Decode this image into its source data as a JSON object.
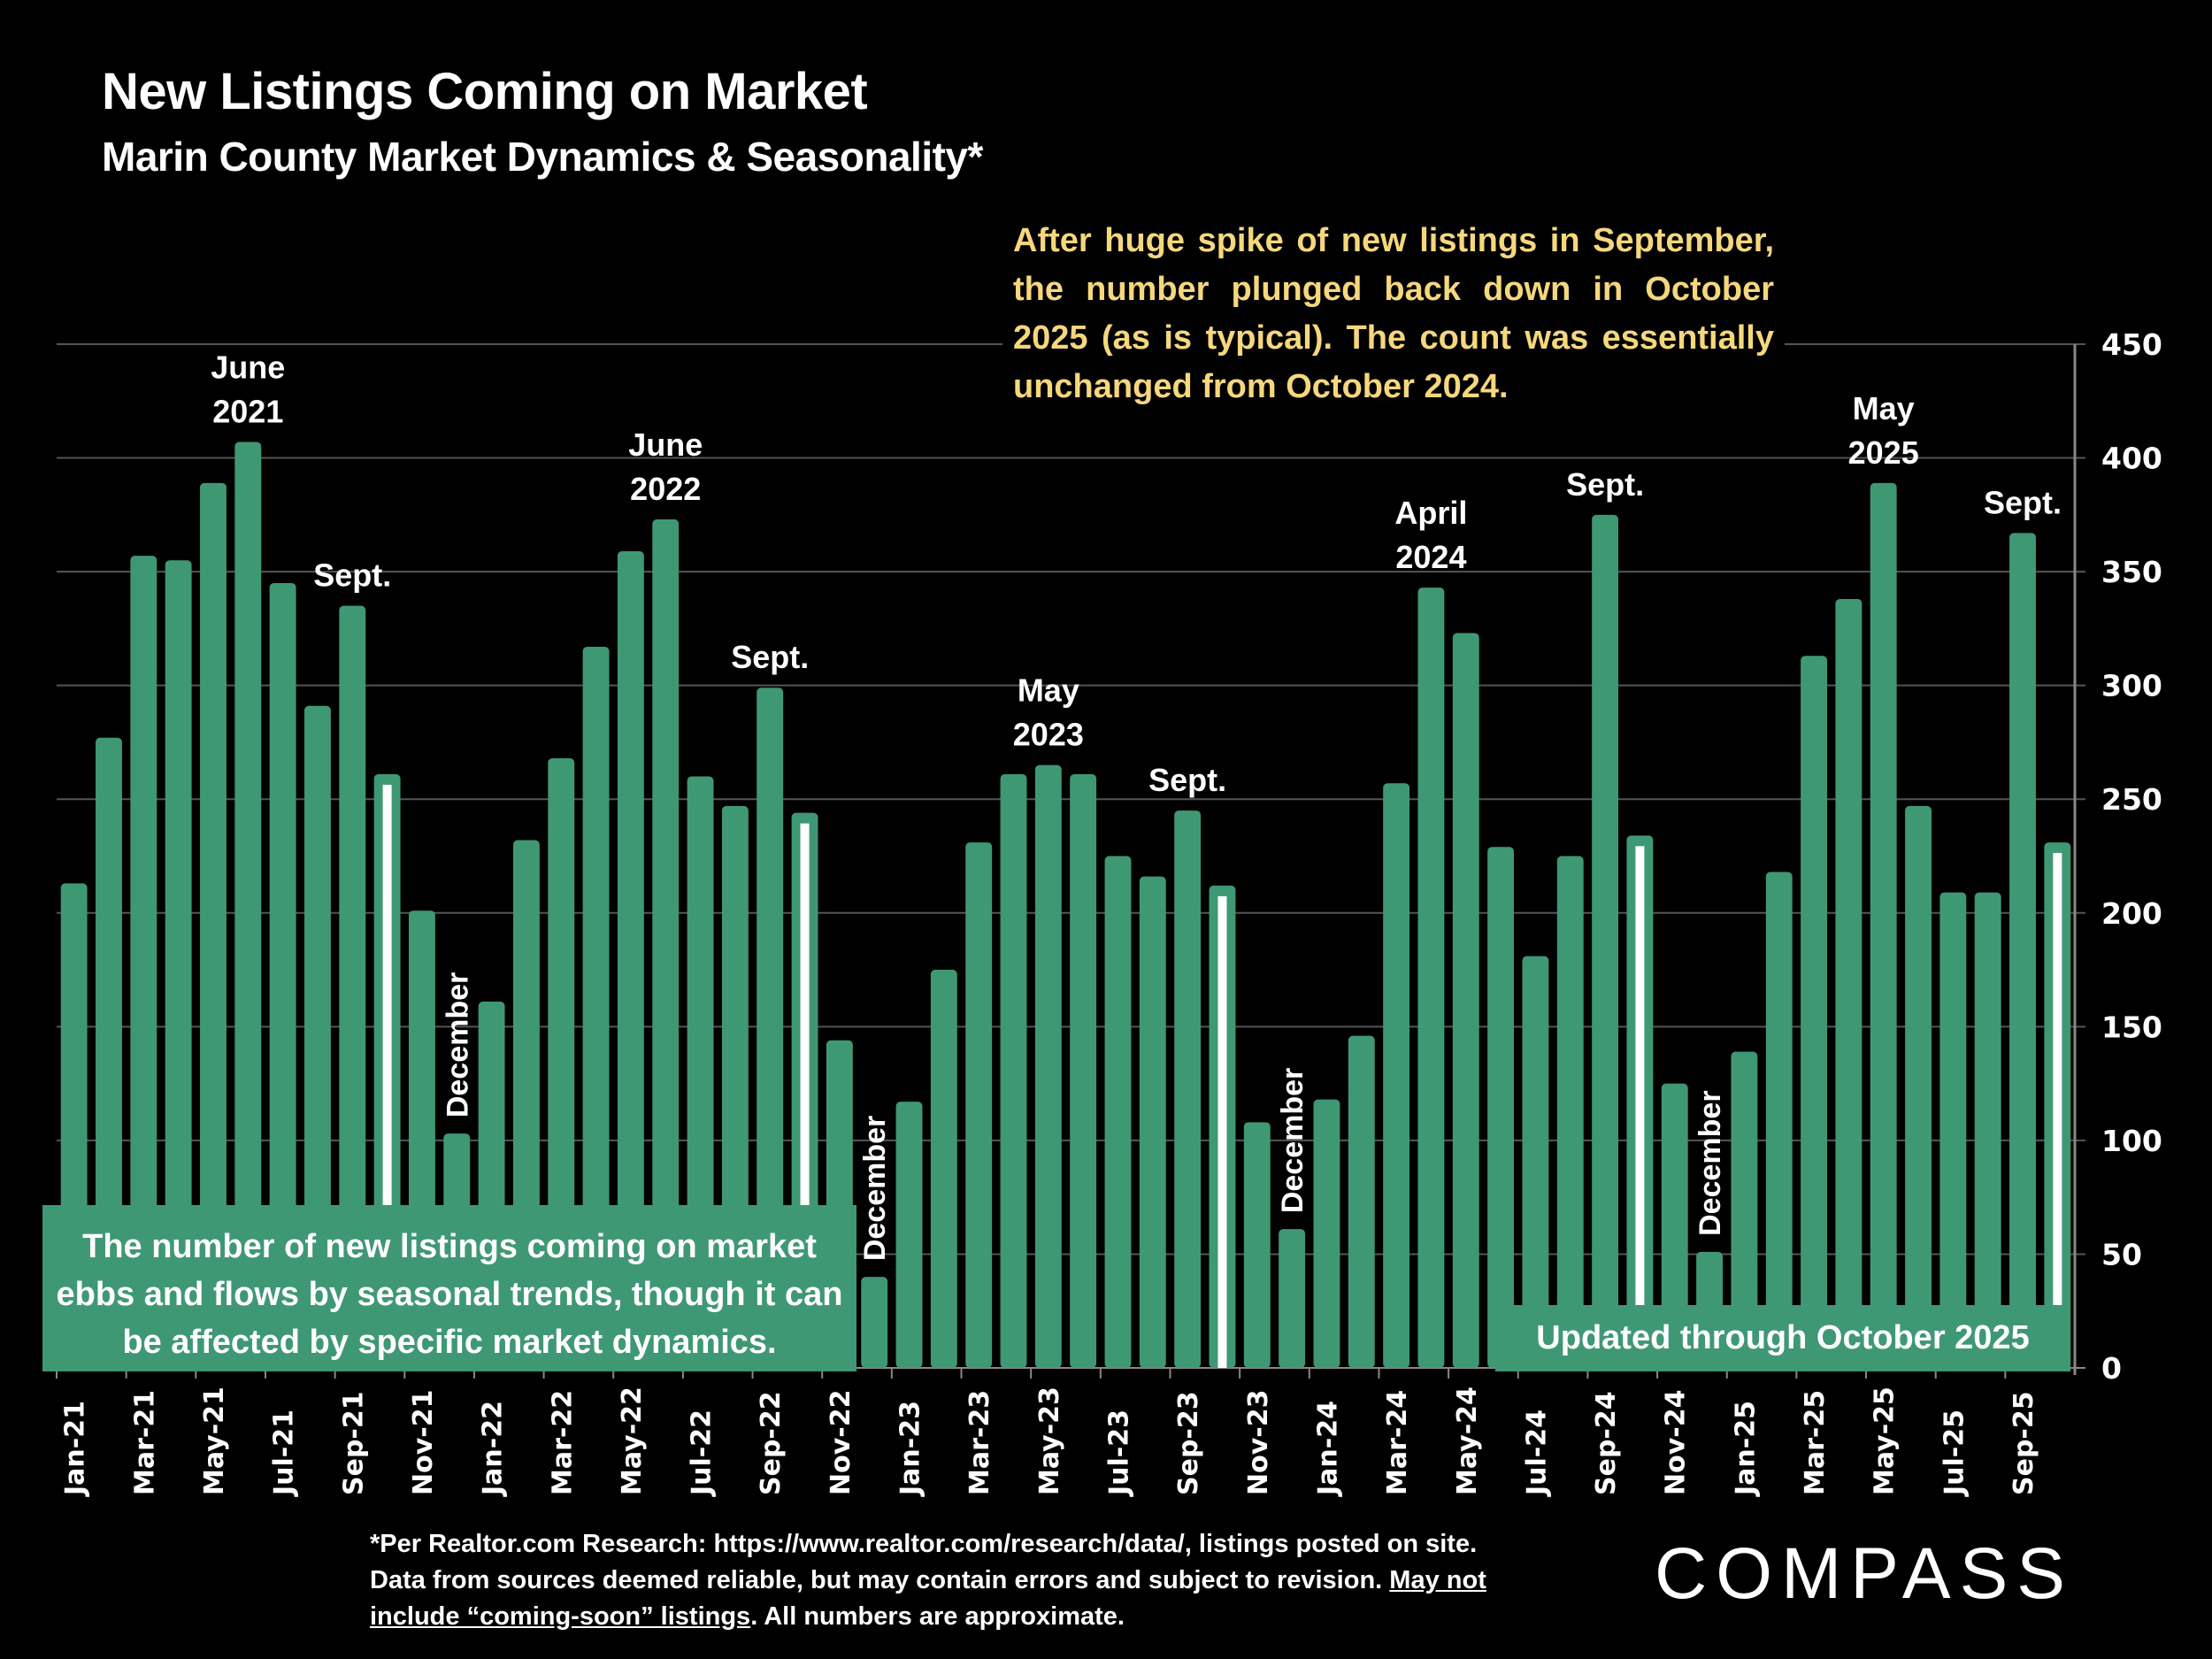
{
  "header": {
    "title": "New Listings Coming on Market",
    "subtitle": "Marin County Market Dynamics & Seasonality*"
  },
  "annotations": {
    "top_note": "After huge spike of new listings in September, the number plunged back down in October 2025 (as is typical). The count was essentially unchanged from October 2024.",
    "left_box": "The number of new listings coming on market ebbs and flows by seasonal trends, though it can be affected by specific market dynamics.",
    "right_box": "Updated through October 2025"
  },
  "footer": {
    "line1": "*Per Realtor.com Research:  https://www.realtor.com/research/data/, listings posted on site.",
    "line2_a": "Data from sources deemed reliable, but may contain errors and subject to revision. ",
    "line2_u": "May not",
    "line3_u": "include “coming-soon” listings",
    "line3_b": ". All numbers are approximate.",
    "logo": "COMPASS"
  },
  "colors": {
    "bar": "#3f9874",
    "highlight_stripe": "#ffffff",
    "note_text": "#f6d77c",
    "grid": "#555555",
    "background": "#000000"
  },
  "chart_data": {
    "type": "bar",
    "title": "New Listings Coming on Market",
    "subtitle": "Marin County Market Dynamics & Seasonality*",
    "xlabel": "",
    "ylabel": "",
    "ylim": [
      0,
      450
    ],
    "yticks": [
      0,
      50,
      100,
      150,
      200,
      250,
      300,
      350,
      400,
      450
    ],
    "y_axis_side": "right",
    "grid": true,
    "categories": [
      "Jan-21",
      "Feb-21",
      "Mar-21",
      "Apr-21",
      "May-21",
      "Jun-21",
      "Jul-21",
      "Aug-21",
      "Sep-21",
      "Oct-21",
      "Nov-21",
      "Dec-21",
      "Jan-22",
      "Feb-22",
      "Mar-22",
      "Apr-22",
      "May-22",
      "Jun-22",
      "Jul-22",
      "Aug-22",
      "Sep-22",
      "Oct-22",
      "Nov-22",
      "Dec-22",
      "Jan-23",
      "Feb-23",
      "Mar-23",
      "Apr-23",
      "May-23",
      "Jun-23",
      "Jul-23",
      "Aug-23",
      "Sep-23",
      "Oct-23",
      "Nov-23",
      "Dec-23",
      "Jan-24",
      "Feb-24",
      "Mar-24",
      "Apr-24",
      "May-24",
      "Jun-24",
      "Jul-24",
      "Aug-24",
      "Sep-24",
      "Oct-24",
      "Nov-24",
      "Dec-24",
      "Jan-25",
      "Feb-25",
      "Mar-25",
      "Apr-25",
      "May-25",
      "Jun-25",
      "Jul-25",
      "Aug-25",
      "Sep-25",
      "Oct-25"
    ],
    "values": [
      213,
      277,
      357,
      355,
      389,
      407,
      345,
      291,
      335,
      261,
      201,
      103,
      161,
      232,
      268,
      317,
      359,
      373,
      260,
      247,
      299,
      244,
      144,
      40,
      117,
      175,
      231,
      261,
      265,
      261,
      225,
      216,
      245,
      212,
      108,
      61,
      118,
      146,
      257,
      343,
      323,
      229,
      181,
      225,
      375,
      234,
      125,
      51,
      139,
      218,
      313,
      338,
      389,
      247,
      209,
      209,
      367,
      231
    ],
    "xtick_labels": [
      "Jan-21",
      "Mar-21",
      "May-21",
      "Jul-21",
      "Sep-21",
      "Nov-21",
      "Jan-22",
      "Mar-22",
      "May-22",
      "Jul-22",
      "Sep-22",
      "Nov-22",
      "Jan-23",
      "Mar-23",
      "May-23",
      "Jul-23",
      "Sep-23",
      "Nov-23",
      "Jan-24",
      "Mar-24",
      "May-24",
      "Jul-24",
      "Sep-24",
      "Nov-24",
      "Jan-25",
      "Mar-25",
      "May-25",
      "Jul-25",
      "Sep-25"
    ],
    "highlighted": [
      "Oct-21",
      "Oct-22",
      "Oct-23",
      "Oct-24",
      "Oct-25"
    ],
    "bar_annotations": [
      {
        "category": "Jun-21",
        "lines": [
          "June",
          "2021"
        ],
        "orientation": "horizontal"
      },
      {
        "category": "Sep-21",
        "lines": [
          "Sept."
        ],
        "orientation": "horizontal"
      },
      {
        "category": "Dec-21",
        "lines": [
          "December"
        ],
        "orientation": "vertical"
      },
      {
        "category": "Jun-22",
        "lines": [
          "June",
          "2022"
        ],
        "orientation": "horizontal"
      },
      {
        "category": "Sep-22",
        "lines": [
          "Sept."
        ],
        "orientation": "horizontal"
      },
      {
        "category": "Dec-22",
        "lines": [
          "December"
        ],
        "orientation": "vertical"
      },
      {
        "category": "May-23",
        "lines": [
          "May",
          "2023"
        ],
        "orientation": "horizontal"
      },
      {
        "category": "Sep-23",
        "lines": [
          "Sept."
        ],
        "orientation": "horizontal"
      },
      {
        "category": "Dec-23",
        "lines": [
          "December"
        ],
        "orientation": "vertical"
      },
      {
        "category": "Apr-24",
        "lines": [
          "April",
          "2024"
        ],
        "orientation": "horizontal"
      },
      {
        "category": "Sep-24",
        "lines": [
          "Sept."
        ],
        "orientation": "horizontal"
      },
      {
        "category": "Dec-24",
        "lines": [
          "December"
        ],
        "orientation": "vertical"
      },
      {
        "category": "May-25",
        "lines": [
          "May",
          "2025"
        ],
        "orientation": "horizontal"
      },
      {
        "category": "Sep-25",
        "lines": [
          "Sept."
        ],
        "orientation": "horizontal"
      }
    ]
  }
}
